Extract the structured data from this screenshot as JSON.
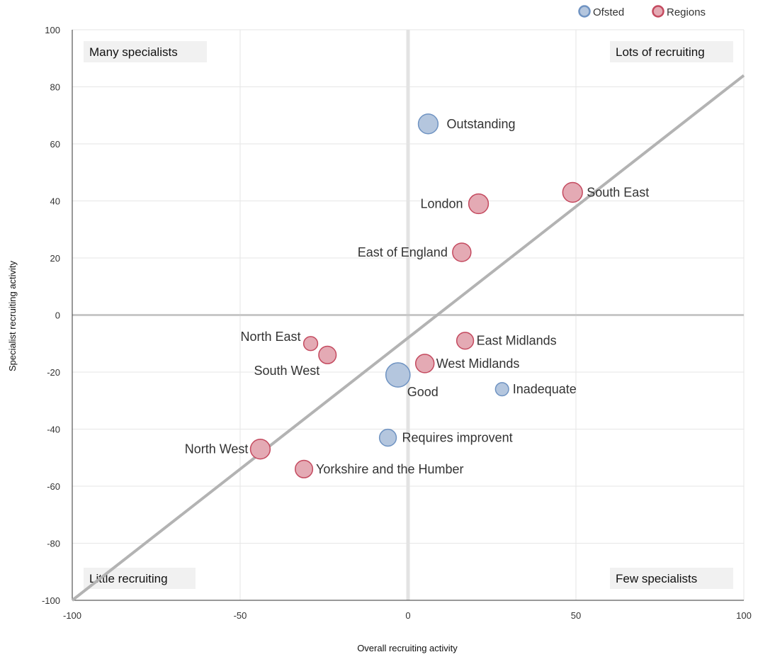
{
  "chart_data": {
    "type": "scatter",
    "title": "",
    "xlabel": "Overall recruiting activity",
    "ylabel": "Specialist recruiting activity",
    "xlim": [
      -100,
      100
    ],
    "ylim": [
      -100,
      100
    ],
    "x_ticks": [
      -100,
      -50,
      0,
      50,
      100
    ],
    "y_ticks": [
      -100,
      -80,
      -60,
      -40,
      -20,
      0,
      20,
      40,
      60,
      80,
      100
    ],
    "grid": true,
    "legend_position": "top-right",
    "colors": {
      "Ofsted": {
        "fill": "#b4c6de",
        "stroke": "#6f93c2"
      },
      "Regions": {
        "fill": "#e4aab4",
        "stroke": "#c44a5f"
      }
    },
    "series": [
      {
        "name": "Ofsted",
        "points": [
          {
            "label": "Outstanding",
            "x": 6,
            "y": 67,
            "size": 3
          },
          {
            "label": "Good",
            "x": -3,
            "y": -21,
            "size": 5
          },
          {
            "label": "Inadequate",
            "x": 28,
            "y": -26,
            "size": 1
          },
          {
            "label": "Requires improvent",
            "x": -6,
            "y": -43,
            "size": 2
          }
        ]
      },
      {
        "name": "Regions",
        "points": [
          {
            "label": "London",
            "x": 21,
            "y": 39,
            "size": 3
          },
          {
            "label": "South East",
            "x": 49,
            "y": 43,
            "size": 3
          },
          {
            "label": "East of England",
            "x": 16,
            "y": 22,
            "size": 2.5
          },
          {
            "label": "East Midlands",
            "x": 17,
            "y": -9,
            "size": 2
          },
          {
            "label": "West Midlands",
            "x": 5,
            "y": -17,
            "size": 2.5
          },
          {
            "label": "North East",
            "x": -29,
            "y": -10,
            "size": 1.2
          },
          {
            "label": "South West",
            "x": -24,
            "y": -14,
            "size": 2.2
          },
          {
            "label": "North West",
            "x": -44,
            "y": -47,
            "size": 3
          },
          {
            "label": "Yorkshire and the Humber",
            "x": -31,
            "y": -54,
            "size": 2.2
          }
        ]
      }
    ],
    "trendline": {
      "x1": -100,
      "y1": -100,
      "x2": 100,
      "y2": 84
    },
    "quadrant_labels": {
      "top_left": "Many specialists",
      "top_right": "Lots of recruiting",
      "bottom_left": "Little recruiting",
      "bottom_right": "Few specialists"
    }
  }
}
